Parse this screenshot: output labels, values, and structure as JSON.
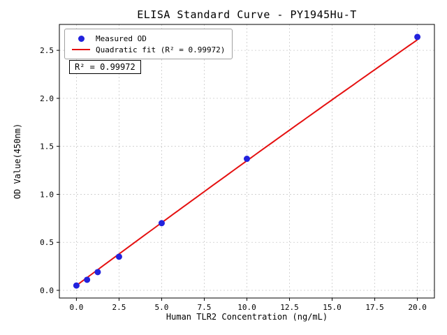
{
  "chart_data": {
    "type": "scatter",
    "title": "ELISA Standard Curve - PY1945Hu-T",
    "xlabel": "Human TLR2 Concentration (ng/mL)",
    "ylabel": "OD Value(450nm)",
    "xlim": [
      -1,
      21
    ],
    "ylim": [
      -0.08,
      2.77
    ],
    "x_ticks": [
      0.0,
      2.5,
      5.0,
      7.5,
      10.0,
      12.5,
      15.0,
      17.5,
      20.0
    ],
    "y_ticks": [
      0.0,
      0.5,
      1.0,
      1.5,
      2.0,
      2.5
    ],
    "grid": true,
    "legend_position": "upper-left",
    "series": [
      {
        "name": "Measured OD",
        "type": "scatter",
        "color": "#2222dd",
        "x": [
          0,
          0.625,
          1.25,
          2.5,
          5,
          10,
          20
        ],
        "y": [
          0.05,
          0.11,
          0.19,
          0.35,
          0.7,
          1.37,
          2.64
        ]
      },
      {
        "name": "Quadratic fit (R² = 0.99972)",
        "type": "line",
        "color": "#e51010",
        "fit": {
          "kind": "quadratic",
          "a": 0.05,
          "b": 0.132,
          "c": -0.0002,
          "x_range": [
            0,
            20
          ]
        }
      }
    ],
    "annotation": "R² = 0.99972",
    "r_squared": 0.99972
  }
}
